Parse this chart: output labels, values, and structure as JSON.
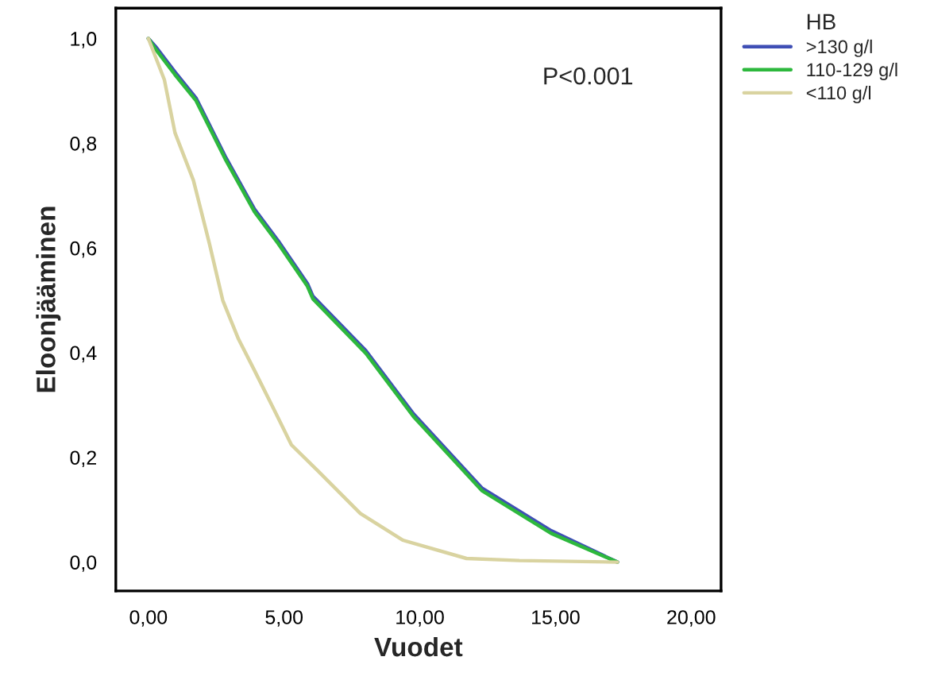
{
  "chart_data": {
    "type": "line",
    "xlabel": "Vuodet",
    "ylabel": "Eloonjääminen",
    "legend_title": "HB",
    "legend": "right",
    "grid": false,
    "marker": "none",
    "line_style": "solid",
    "annotations": [
      "P<0.001"
    ],
    "xlim": [
      -1.2,
      21.1
    ],
    "ylim": [
      -0.055,
      1.058
    ],
    "xticks": [
      {
        "value": 0,
        "label": "0,00"
      },
      {
        "value": 5,
        "label": "5,00"
      },
      {
        "value": 10,
        "label": "10,00"
      },
      {
        "value": 15,
        "label": "15,00"
      },
      {
        "value": 20,
        "label": "20,00"
      }
    ],
    "yticks": [
      {
        "value": 0,
        "label": "0,0"
      },
      {
        "value": 0.2,
        "label": "0,2"
      },
      {
        "value": 0.4,
        "label": "0,4"
      },
      {
        "value": 0.6,
        "label": "0,6"
      },
      {
        "value": 0.8,
        "label": "0,8"
      },
      {
        "value": 1.0,
        "label": "1,0"
      }
    ],
    "series": [
      {
        "name": ">130 g/l",
        "color": "#3f4fb5",
        "x": [
          0,
          0.26,
          0.98,
          1.76,
          2.83,
          3.91,
          4.79,
          5.86,
          6.06,
          8.01,
          9.77,
          12.3,
          14.84,
          17.28
        ],
        "values": [
          1.0,
          0.985,
          0.936,
          0.886,
          0.775,
          0.674,
          0.613,
          0.532,
          0.508,
          0.404,
          0.283,
          0.141,
          0.06,
          0.0
        ]
      },
      {
        "name": "110-129 g/l",
        "color": "#2db83d",
        "x": [
          0,
          0.26,
          0.98,
          1.76,
          2.83,
          3.91,
          4.79,
          5.86,
          6.06,
          8.01,
          9.77,
          12.3,
          14.84,
          17.28
        ],
        "values": [
          1.0,
          0.98,
          0.931,
          0.881,
          0.77,
          0.669,
          0.608,
          0.527,
          0.503,
          0.399,
          0.278,
          0.136,
          0.055,
          0.0
        ]
      },
      {
        "name": "<110 g/l",
        "color": "#d9d3a0",
        "x": [
          0,
          0.59,
          0.98,
          1.66,
          2.25,
          2.74,
          3.32,
          3.91,
          4.69,
          5.27,
          6.25,
          7.81,
          9.37,
          11.72,
          13.67,
          17.28
        ],
        "values": [
          1.0,
          0.921,
          0.82,
          0.729,
          0.608,
          0.5,
          0.426,
          0.366,
          0.285,
          0.224,
          0.174,
          0.093,
          0.042,
          0.007,
          0.003,
          0.0
        ]
      }
    ]
  }
}
